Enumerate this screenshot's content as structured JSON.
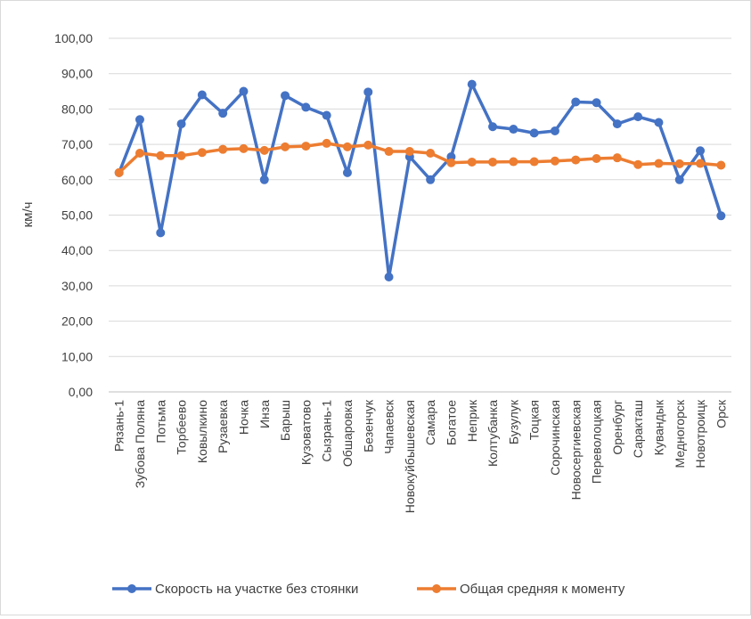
{
  "chart_data": {
    "type": "line",
    "title": "",
    "xlabel": "",
    "ylabel": "км/ч",
    "ylim": [
      0,
      100
    ],
    "y_ticks": [
      "0,00",
      "10,00",
      "20,00",
      "30,00",
      "40,00",
      "50,00",
      "60,00",
      "70,00",
      "80,00",
      "90,00",
      "100,00"
    ],
    "grid": true,
    "legend_position": "bottom",
    "categories": [
      "Рязань-1",
      "Зубова Поляна",
      "Потьма",
      "Торбеево",
      "Ковылкино",
      "Рузаевка",
      "Ночка",
      "Инза",
      "Барыш",
      "Кузоватово",
      "Сызрань-1",
      "Обшаровка",
      "Безенчук",
      "Чапаевск",
      "Новокуйбышевская",
      "Самара",
      "Богатое",
      "Неприк",
      "Колтубанка",
      "Бузулук",
      "Тоцкая",
      "Сорочинская",
      "Новосергиевская",
      "Переволоцкая",
      "Оренбург",
      "Саракташ",
      "Кувандык",
      "Медногорск",
      "Новотроицк",
      "Орск"
    ],
    "series": [
      {
        "name": "Скорость на участке без стоянки",
        "color": "#4472c4",
        "values": [
          62.0,
          77.0,
          45.0,
          75.8,
          84.0,
          78.8,
          85.0,
          60.0,
          83.8,
          80.5,
          78.2,
          62.0,
          84.8,
          32.5,
          66.5,
          60.0,
          66.5,
          87.0,
          75.0,
          74.3,
          73.2,
          73.8,
          82.0,
          81.8,
          75.8,
          77.8,
          76.2,
          60.0,
          68.2,
          49.8
        ]
      },
      {
        "name": "Общая средняя к моменту",
        "color": "#ed7d31",
        "values": [
          62.0,
          67.5,
          66.8,
          66.8,
          67.7,
          68.6,
          68.8,
          68.3,
          69.3,
          69.5,
          70.3,
          69.3,
          69.8,
          68.0,
          68.0,
          67.5,
          64.8,
          65.0,
          65.0,
          65.1,
          65.1,
          65.3,
          65.6,
          66.0,
          66.2,
          64.3,
          64.6,
          64.5,
          64.6,
          64.1
        ]
      }
    ]
  }
}
